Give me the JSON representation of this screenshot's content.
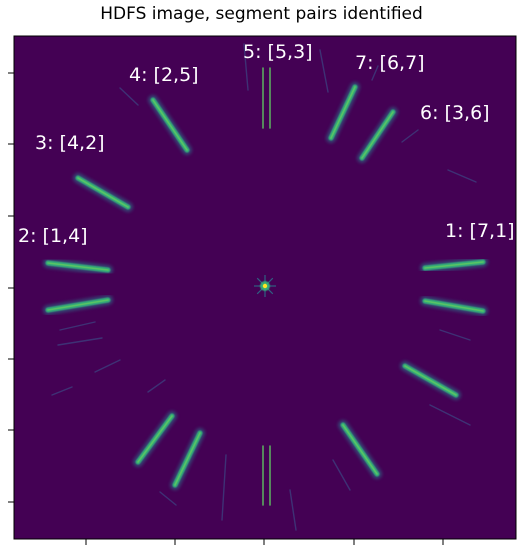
{
  "title": "HDFS image, segment pairs identified",
  "colors": {
    "background": "#440154",
    "streak": "#35b779",
    "streak_core": "#5ec962",
    "streak_edge": "#2a788e",
    "faint": "#3b528b",
    "label": "#ffffff",
    "center_star": "#fde725"
  },
  "labels": [
    {
      "id": "1",
      "text": "1: [7,1]"
    },
    {
      "id": "2",
      "text": "2: [1,4]"
    },
    {
      "id": "3",
      "text": "3: [4,2]"
    },
    {
      "id": "4",
      "text": "4: [2,5]"
    },
    {
      "id": "5",
      "text": "5: [5,3]"
    },
    {
      "id": "6",
      "text": "6: [3,6]"
    },
    {
      "id": "7",
      "text": "7: [6,7]"
    }
  ]
}
